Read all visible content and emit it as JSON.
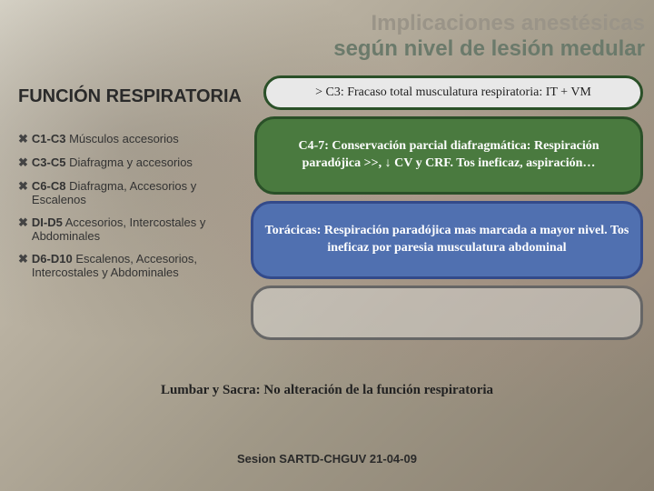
{
  "title_line1": "Implicaciones anestésicas",
  "title_line2": "según nivel de lesión medular",
  "subtitle": "FUNCIÓN RESPIRATORIA",
  "left_items": [
    {
      "b": "C1-C3",
      "t": " Músculos accesorios"
    },
    {
      "b": "C3-C5",
      "t": " Diafragma y accesorios"
    },
    {
      "b": "C6-C8",
      "t": " Diafragma, Accesorios y Escalenos"
    },
    {
      "b": "DI-D5",
      "t": " Accesorios, Intercostales y Abdominales"
    },
    {
      "b": "D6-D10",
      "t": " Escalenos, Accesorios, Intercostales y Abdominales"
    }
  ],
  "box1_text": "> C3: Fracaso total musculatura respiratoria: IT + VM",
  "box2_text": "C4-7: Conservación parcial diafragmática: Respiración paradójica >>, ↓ CV y CRF.  Tos ineficaz, aspiración…",
  "box3_text": "Torácicas: Respiración paradójica mas marcada a mayor nivel. Tos ineficaz por paresia musculatura abdominal",
  "box5_text": "Lumbar y Sacra: No alteración de la función respiratoria",
  "footer": "Sesion SARTD-CHGUV 21-04-09",
  "colors": {
    "box1_border": "#2a5028",
    "box1_bg": "#e8e8e8",
    "box2_border": "#2a5028",
    "box2_bg": "#4a7a3f",
    "box3_border": "#334a8a",
    "box3_bg": "#5070b0",
    "box4_border": "#666666"
  }
}
